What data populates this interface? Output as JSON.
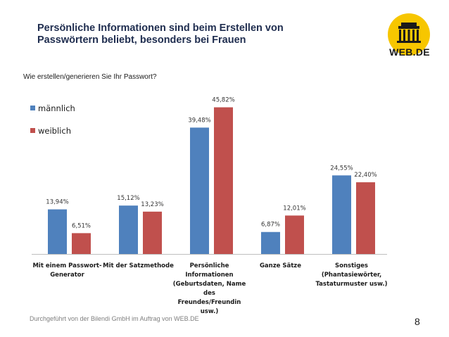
{
  "slide": {
    "title": "Persönliche Informationen sind beim Erstellen von\nPasswörtern beliebt, besonders bei Frauen",
    "subtitle": "Wie erstellen/generieren Sie Ihr Passwort?",
    "logo_text": "WEB.DE",
    "footer": "Durchgeführt von der Bilendi GmbH im Auftrag von WEB.DE",
    "page_number": "8"
  },
  "colors": {
    "male": "#4f81bd",
    "female": "#c0504d",
    "logo_yellow": "#f7c600"
  },
  "chart_data": {
    "type": "bar",
    "title": "Wie erstellen/generieren Sie Ihr Passwort?",
    "categories": [
      [
        "Mit einem Passwort-",
        "Generator"
      ],
      [
        "Mit der Satzmethode"
      ],
      [
        "Persönliche",
        "Informationen",
        "(Geburtsdaten, Name",
        "des",
        "Freundes/Freundin",
        "usw.)"
      ],
      [
        "Ganze Sätze"
      ],
      [
        "Sonstiges",
        "(Phantasiewörter,",
        "Tastaturmuster usw.)"
      ]
    ],
    "series": [
      {
        "name": "männlich",
        "values": [
          13.94,
          15.12,
          39.48,
          6.87,
          24.55
        ],
        "labels": [
          "13,94%",
          "15,12%",
          "39,48%",
          "6,87%",
          "24,55%"
        ]
      },
      {
        "name": "weiblich",
        "values": [
          6.51,
          13.23,
          45.82,
          12.01,
          22.4
        ],
        "labels": [
          "6,51%",
          "13,23%",
          "45,82%",
          "12,01%",
          "22,40%"
        ]
      }
    ],
    "legend_position": "top-left",
    "ylim": [
      0,
      50
    ],
    "grid": false
  }
}
